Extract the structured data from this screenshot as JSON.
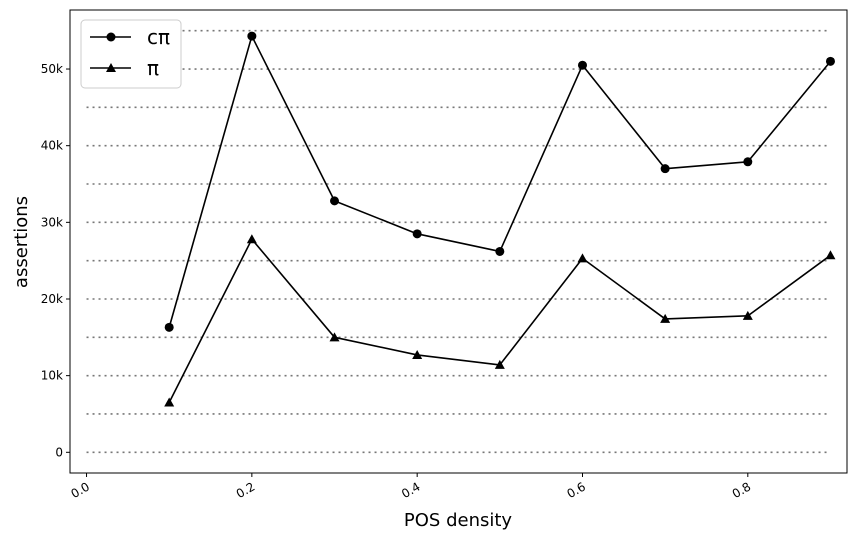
{
  "chart_data": {
    "type": "line",
    "title": "",
    "xlabel": "POS density",
    "ylabel": "assertions",
    "x": [
      0.1,
      0.2,
      0.3,
      0.4,
      0.5,
      0.6,
      0.7,
      0.8,
      0.9
    ],
    "series": [
      {
        "name": "cπ",
        "marker": "circle",
        "color": "#000000",
        "values": [
          16300,
          54300,
          32800,
          28500,
          26200,
          50500,
          37000,
          37900,
          51000
        ]
      },
      {
        "name": "π",
        "marker": "triangle",
        "color": "#000000",
        "values": [
          6500,
          27800,
          15000,
          12700,
          11400,
          25300,
          17400,
          17800,
          25700
        ]
      }
    ],
    "xlim": [
      -0.02,
      0.92
    ],
    "ylim": [
      -2700,
      57700
    ],
    "xticks": [
      0.0,
      0.2,
      0.4,
      0.6,
      0.8
    ],
    "xtick_labels": [
      "0.0",
      "0.2",
      "0.4",
      "0.6",
      "0.8"
    ],
    "yticks": [
      0,
      10000,
      20000,
      30000,
      40000,
      50000
    ],
    "ytick_labels": [
      "0",
      "10k",
      "20k",
      "30k",
      "40k",
      "50k"
    ],
    "hlines": [
      0,
      5000,
      10000,
      15000,
      20000,
      25000,
      30000,
      35000,
      40000,
      45000,
      50000,
      55000
    ],
    "hline_style": "dotted",
    "hline_x_range": [
      0.0,
      0.9
    ],
    "grid": false,
    "legend_position": "upper-left"
  }
}
